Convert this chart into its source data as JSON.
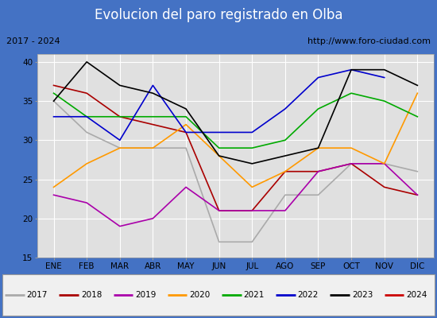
{
  "title": "Evolucion del paro registrado en Olba",
  "subtitle_left": "2017 - 2024",
  "subtitle_right": "http://www.foro-ciudad.com",
  "months": [
    "ENE",
    "FEB",
    "MAR",
    "ABR",
    "MAY",
    "JUN",
    "JUL",
    "AGO",
    "SEP",
    "OCT",
    "NOV",
    "DIC"
  ],
  "ylim": [
    15,
    41
  ],
  "yticks": [
    15,
    20,
    25,
    30,
    35,
    40
  ],
  "series": {
    "2017": {
      "color": "#aaaaaa",
      "data": [
        35,
        31,
        29,
        29,
        29,
        17,
        17,
        23,
        23,
        27,
        27,
        26
      ]
    },
    "2018": {
      "color": "#aa0000",
      "data": [
        37,
        36,
        33,
        32,
        31,
        21,
        21,
        26,
        26,
        27,
        24,
        23
      ]
    },
    "2019": {
      "color": "#aa00aa",
      "data": [
        23,
        22,
        19,
        20,
        24,
        21,
        21,
        21,
        26,
        27,
        27,
        23
      ]
    },
    "2020": {
      "color": "#ff9900",
      "data": [
        24,
        27,
        29,
        29,
        32,
        28,
        24,
        26,
        29,
        29,
        27,
        36
      ]
    },
    "2021": {
      "color": "#00aa00",
      "data": [
        36,
        33,
        33,
        33,
        33,
        29,
        29,
        30,
        34,
        36,
        35,
        33
      ]
    },
    "2022": {
      "color": "#0000cc",
      "data": [
        33,
        33,
        30,
        37,
        31,
        31,
        31,
        34,
        38,
        39,
        38,
        null
      ]
    },
    "2023": {
      "color": "#000000",
      "data": [
        35,
        40,
        37,
        36,
        34,
        28,
        27,
        28,
        29,
        39,
        39,
        37
      ]
    },
    "2024": {
      "color": "#cc0000",
      "data": [
        37,
        null,
        null,
        null,
        null,
        null,
        null,
        null,
        null,
        null,
        null,
        null
      ]
    }
  },
  "title_bg": "#4472c4",
  "title_color": "#ffffff",
  "title_fontsize": 12,
  "subtitle_bg": "#d4d4d4",
  "subtitle_fontsize": 8,
  "plot_bg": "#e0e0e0",
  "grid_color": "#ffffff",
  "border_color": "#4472c4",
  "legend_bg": "#f0f0f0"
}
